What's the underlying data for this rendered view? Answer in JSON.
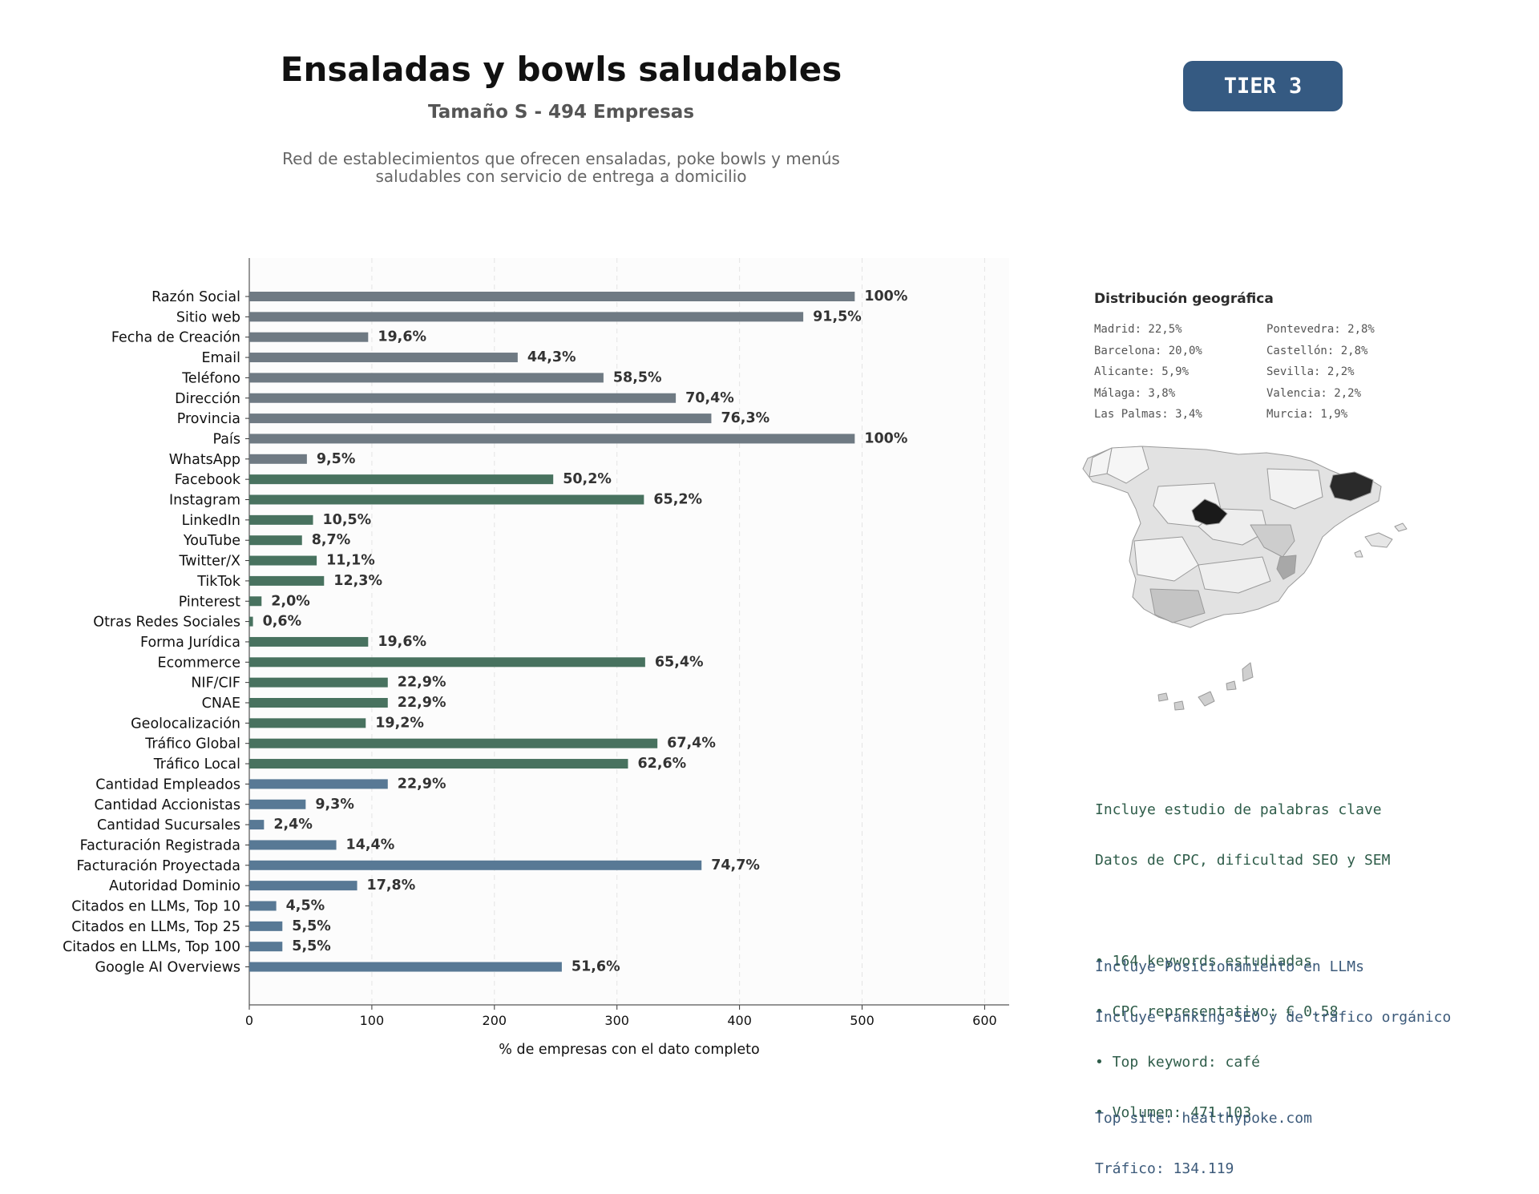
{
  "header": {
    "title": "Ensaladas y bowls saludables",
    "subtitle": "Tamaño S - 494 Empresas",
    "description_line1": "Red de establecimientos que ofrecen ensaladas, poke bowls y menús",
    "description_line2": "saludables con servicio de entrega a domicilio",
    "tier": "TIER 3"
  },
  "colors": {
    "gray": "#6f7a83",
    "green": "#48725f",
    "blue": "#587995",
    "badge": "#355a82"
  },
  "chart_data": {
    "type": "bar",
    "orientation": "horizontal",
    "xlabel": "% de empresas con el dato completo",
    "xlim": [
      0,
      620
    ],
    "xticks": [
      0,
      100,
      200,
      300,
      400,
      500,
      600
    ],
    "grid": "vertical dashed",
    "bars": [
      {
        "label": "Razón Social",
        "value": 494,
        "pct": "100%",
        "group": "gray"
      },
      {
        "label": "Sitio web",
        "value": 452,
        "pct": "91,5%",
        "group": "gray"
      },
      {
        "label": "Fecha de Creación",
        "value": 97,
        "pct": "19,6%",
        "group": "gray"
      },
      {
        "label": "Email",
        "value": 219,
        "pct": "44,3%",
        "group": "gray"
      },
      {
        "label": "Teléfono",
        "value": 289,
        "pct": "58,5%",
        "group": "gray"
      },
      {
        "label": "Dirección",
        "value": 348,
        "pct": "70,4%",
        "group": "gray"
      },
      {
        "label": "Provincia",
        "value": 377,
        "pct": "76,3%",
        "group": "gray"
      },
      {
        "label": "País",
        "value": 494,
        "pct": "100%",
        "group": "gray"
      },
      {
        "label": "WhatsApp",
        "value": 47,
        "pct": "9,5%",
        "group": "gray"
      },
      {
        "label": "Facebook",
        "value": 248,
        "pct": "50,2%",
        "group": "green"
      },
      {
        "label": "Instagram",
        "value": 322,
        "pct": "65,2%",
        "group": "green"
      },
      {
        "label": "LinkedIn",
        "value": 52,
        "pct": "10,5%",
        "group": "green"
      },
      {
        "label": "YouTube",
        "value": 43,
        "pct": "8,7%",
        "group": "green"
      },
      {
        "label": "Twitter/X",
        "value": 55,
        "pct": "11,1%",
        "group": "green"
      },
      {
        "label": "TikTok",
        "value": 61,
        "pct": "12,3%",
        "group": "green"
      },
      {
        "label": "Pinterest",
        "value": 10,
        "pct": "2,0%",
        "group": "green"
      },
      {
        "label": "Otras Redes Sociales",
        "value": 3,
        "pct": "0,6%",
        "group": "green"
      },
      {
        "label": "Forma Jurídica",
        "value": 97,
        "pct": "19,6%",
        "group": "green"
      },
      {
        "label": "Ecommerce",
        "value": 323,
        "pct": "65,4%",
        "group": "green"
      },
      {
        "label": "NIF/CIF",
        "value": 113,
        "pct": "22,9%",
        "group": "green"
      },
      {
        "label": "CNAE",
        "value": 113,
        "pct": "22,9%",
        "group": "green"
      },
      {
        "label": "Geolocalización",
        "value": 95,
        "pct": "19,2%",
        "group": "green"
      },
      {
        "label": "Tráfico Global",
        "value": 333,
        "pct": "67,4%",
        "group": "green"
      },
      {
        "label": "Tráfico Local",
        "value": 309,
        "pct": "62,6%",
        "group": "green"
      },
      {
        "label": "Cantidad Empleados",
        "value": 113,
        "pct": "22,9%",
        "group": "blue"
      },
      {
        "label": "Cantidad Accionistas",
        "value": 46,
        "pct": "9,3%",
        "group": "blue"
      },
      {
        "label": "Cantidad Sucursales",
        "value": 12,
        "pct": "2,4%",
        "group": "blue"
      },
      {
        "label": "Facturación Registrada",
        "value": 71,
        "pct": "14,4%",
        "group": "blue"
      },
      {
        "label": "Facturación Proyectada",
        "value": 369,
        "pct": "74,7%",
        "group": "blue"
      },
      {
        "label": "Autoridad Dominio",
        "value": 88,
        "pct": "17,8%",
        "group": "blue"
      },
      {
        "label": "Citados en LLMs, Top 10",
        "value": 22,
        "pct": "4,5%",
        "group": "blue"
      },
      {
        "label": "Citados en LLMs, Top 25",
        "value": 27,
        "pct": "5,5%",
        "group": "blue"
      },
      {
        "label": "Citados en LLMs, Top 100",
        "value": 27,
        "pct": "5,5%",
        "group": "blue"
      },
      {
        "label": "Google AI Overviews",
        "value": 255,
        "pct": "51,6%",
        "group": "blue"
      }
    ]
  },
  "geo": {
    "title": "Distribución geográfica",
    "items": [
      "Madrid: 22,5%",
      "Pontevedra: 2,8%",
      "Barcelona: 20,0%",
      "Castellón: 2,8%",
      "Alicante: 5,9%",
      "Sevilla: 2,2%",
      "Málaga: 3,8%",
      "Valencia: 2,2%",
      "Las Palmas: 3,4%",
      "Murcia: 1,9%"
    ]
  },
  "keywords": {
    "line1": "Incluye estudio de palabras clave",
    "line2": "Datos de CPC, dificultad SEO y SEM",
    "bullet1": "• 164 keywords estudiadas",
    "bullet2": "• CPC representativo: € 0.58",
    "bullet3": "• Top keyword: café",
    "bullet4": "• Volumen: 471.103"
  },
  "llm": {
    "line1": "Incluye Posicionamiento en LLMs",
    "line2": "Incluye ranking SEO y de tráfico orgánico",
    "line3": "Top site: healthypoke.com",
    "line4": "Tráfico: 134.119"
  }
}
